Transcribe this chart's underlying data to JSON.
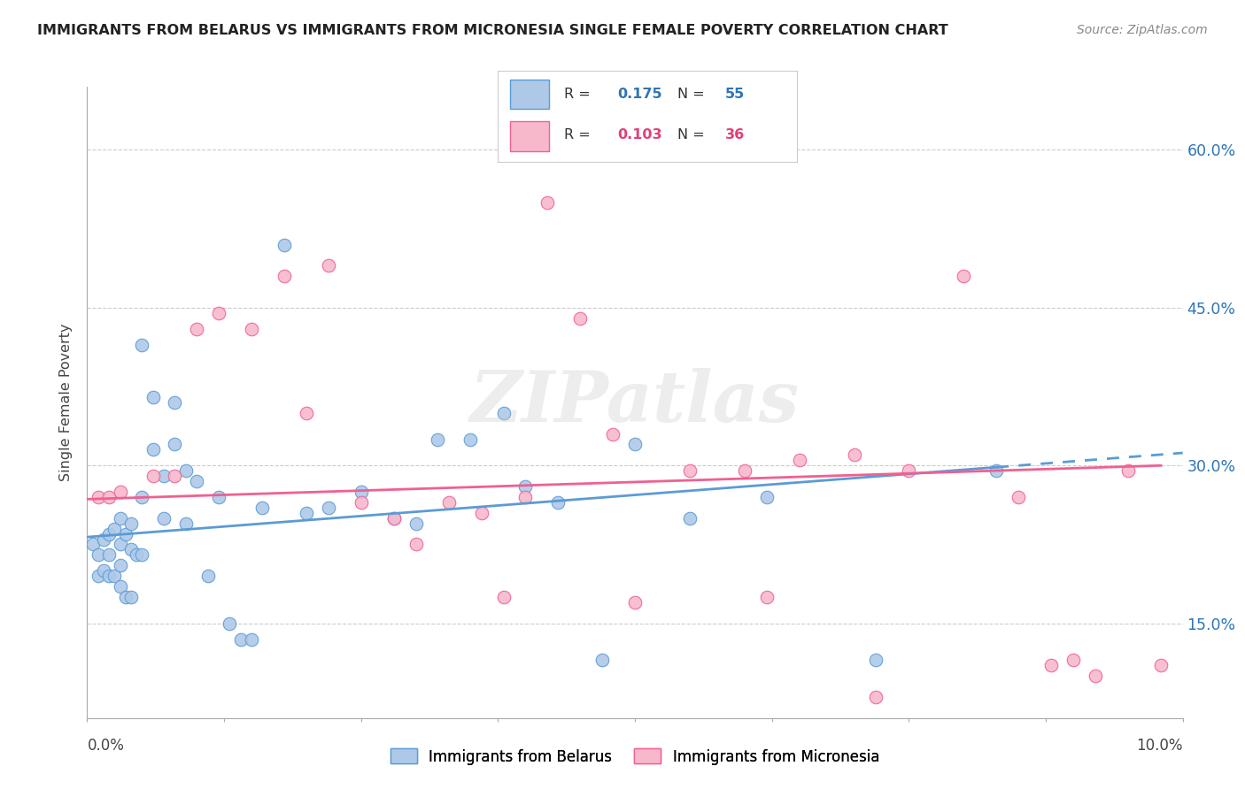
{
  "title": "IMMIGRANTS FROM BELARUS VS IMMIGRANTS FROM MICRONESIA SINGLE FEMALE POVERTY CORRELATION CHART",
  "source": "Source: ZipAtlas.com",
  "ylabel": "Single Female Poverty",
  "legend_belarus": "Immigrants from Belarus",
  "legend_micronesia": "Immigrants from Micronesia",
  "R_belarus": 0.175,
  "N_belarus": 55,
  "R_micronesia": 0.103,
  "N_micronesia": 36,
  "color_belarus_fill": "#aec9e8",
  "color_micronesia_fill": "#f7b8cc",
  "color_belarus_edge": "#5b9bd5",
  "color_micronesia_edge": "#f06090",
  "color_belarus_line": "#5b9bd5",
  "color_micronesia_line": "#f06090",
  "color_belarus_label": "#2e75b6",
  "color_micronesia_label": "#e0407a",
  "ytick_values": [
    0.15,
    0.3,
    0.45,
    0.6
  ],
  "xmin": 0.0,
  "xmax": 0.1,
  "ymin": 0.06,
  "ymax": 0.66,
  "belarus_x": [
    0.0005,
    0.001,
    0.001,
    0.0015,
    0.0015,
    0.002,
    0.002,
    0.002,
    0.0025,
    0.0025,
    0.003,
    0.003,
    0.003,
    0.003,
    0.0035,
    0.0035,
    0.004,
    0.004,
    0.004,
    0.0045,
    0.005,
    0.005,
    0.005,
    0.006,
    0.006,
    0.007,
    0.007,
    0.008,
    0.008,
    0.009,
    0.009,
    0.01,
    0.011,
    0.012,
    0.013,
    0.014,
    0.015,
    0.016,
    0.018,
    0.02,
    0.022,
    0.025,
    0.028,
    0.03,
    0.032,
    0.035,
    0.038,
    0.04,
    0.043,
    0.047,
    0.05,
    0.055,
    0.062,
    0.072,
    0.083
  ],
  "belarus_y": [
    0.225,
    0.215,
    0.195,
    0.23,
    0.2,
    0.235,
    0.215,
    0.195,
    0.24,
    0.195,
    0.25,
    0.225,
    0.205,
    0.185,
    0.235,
    0.175,
    0.245,
    0.22,
    0.175,
    0.215,
    0.415,
    0.27,
    0.215,
    0.365,
    0.315,
    0.29,
    0.25,
    0.36,
    0.32,
    0.295,
    0.245,
    0.285,
    0.195,
    0.27,
    0.15,
    0.135,
    0.135,
    0.26,
    0.51,
    0.255,
    0.26,
    0.275,
    0.25,
    0.245,
    0.325,
    0.325,
    0.35,
    0.28,
    0.265,
    0.115,
    0.32,
    0.25,
    0.27,
    0.115,
    0.295
  ],
  "micronesia_x": [
    0.001,
    0.002,
    0.003,
    0.006,
    0.008,
    0.01,
    0.012,
    0.015,
    0.018,
    0.02,
    0.022,
    0.025,
    0.028,
    0.03,
    0.033,
    0.036,
    0.038,
    0.04,
    0.042,
    0.045,
    0.048,
    0.05,
    0.055,
    0.06,
    0.062,
    0.065,
    0.07,
    0.072,
    0.075,
    0.08,
    0.085,
    0.088,
    0.09,
    0.092,
    0.095,
    0.098
  ],
  "micronesia_y": [
    0.27,
    0.27,
    0.275,
    0.29,
    0.29,
    0.43,
    0.445,
    0.43,
    0.48,
    0.35,
    0.49,
    0.265,
    0.25,
    0.225,
    0.265,
    0.255,
    0.175,
    0.27,
    0.55,
    0.44,
    0.33,
    0.17,
    0.295,
    0.295,
    0.175,
    0.305,
    0.31,
    0.08,
    0.295,
    0.48,
    0.27,
    0.11,
    0.115,
    0.1,
    0.295,
    0.11
  ]
}
